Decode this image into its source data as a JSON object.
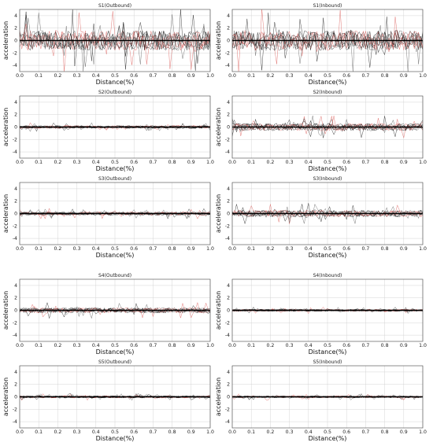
{
  "chart_data": [
    {
      "type": "line",
      "title": "S1(Outbound)",
      "xlabel": "Distance(%)",
      "ylabel": "acceleration",
      "xlim": [
        0,
        1.0
      ],
      "ylim": [
        -5,
        5
      ],
      "xticks": [
        "0.0",
        "0.1",
        "0.2",
        "0.3",
        "0.4",
        "0.5",
        "0.6",
        "0.7",
        "0.8",
        "0.9",
        "1.0"
      ],
      "yticks": [
        "4",
        "2",
        "0",
        "-2",
        "-4"
      ],
      "grid": true,
      "amplitude": 3.5,
      "mean_line_color": "#000000",
      "trace_colors": [
        "#000000",
        "#d9534f",
        "#444444"
      ]
    },
    {
      "type": "line",
      "title": "S1(Inbound)",
      "xlabel": "Distance(%)",
      "ylabel": "acceleration",
      "xlim": [
        0,
        1.0
      ],
      "ylim": [
        -5,
        5
      ],
      "xticks": [
        "0.0",
        "0.1",
        "0.2",
        "0.3",
        "0.4",
        "0.5",
        "0.6",
        "0.7",
        "0.8",
        "0.9",
        "1.0"
      ],
      "yticks": [
        "4",
        "2",
        "0",
        "-2",
        "-4"
      ],
      "grid": true,
      "amplitude": 3.6
    },
    {
      "type": "line",
      "title": "S2(Outbound)",
      "xlabel": "Distance(%)",
      "ylabel": "acceleration",
      "xlim": [
        0,
        1.0
      ],
      "ylim": [
        -5,
        5
      ],
      "xticks": [
        "0.0",
        "0.1",
        "0.2",
        "0.3",
        "0.4",
        "0.5",
        "0.6",
        "0.7",
        "0.8",
        "0.9",
        "1.0"
      ],
      "yticks": [
        "4",
        "2",
        "0",
        "-2",
        "-4"
      ],
      "grid": true,
      "amplitude": 0.5
    },
    {
      "type": "line",
      "title": "S2(Inbound)",
      "xlabel": "Distance(%)",
      "ylabel": "acceleration",
      "xlim": [
        0,
        1.0
      ],
      "ylim": [
        -5,
        5
      ],
      "xticks": [
        "0.0",
        "0.1",
        "0.2",
        "0.3",
        "0.4",
        "0.5",
        "0.6",
        "0.7",
        "0.8",
        "0.9",
        "1.0"
      ],
      "yticks": [
        "4",
        "2",
        "0",
        "-2",
        "-4"
      ],
      "grid": true,
      "amplitude": 1.3
    },
    {
      "type": "line",
      "title": "S3(Outbound)",
      "xlabel": "Distance(%)",
      "ylabel": "acceleration",
      "xlim": [
        0,
        1.0
      ],
      "ylim": [
        -5,
        5
      ],
      "xticks": [
        "0.0",
        "0.1",
        "0.2",
        "0.3",
        "0.4",
        "0.5",
        "0.6",
        "0.7",
        "0.8",
        "0.9",
        "1.0"
      ],
      "yticks": [
        "4",
        "2",
        "0",
        "-2",
        "-4"
      ],
      "grid": true,
      "amplitude": 0.6
    },
    {
      "type": "line",
      "title": "S3(Inbound)",
      "xlabel": "Distance(%)",
      "ylabel": "acceleration",
      "xlim": [
        0,
        1.0
      ],
      "ylim": [
        -5,
        5
      ],
      "xticks": [
        "0.0",
        "0.1",
        "0.2",
        "0.3",
        "0.4",
        "0.5",
        "0.6",
        "0.7",
        "0.8",
        "0.9",
        "1.0"
      ],
      "yticks": [
        "4",
        "2",
        "0",
        "-2",
        "-4"
      ],
      "grid": true,
      "amplitude": 1.2
    },
    {
      "type": "line",
      "title": "S4(Outbound)",
      "xlabel": "Distance(%)",
      "ylabel": "acceleration",
      "xlim": [
        0,
        1.0
      ],
      "ylim": [
        -5,
        5
      ],
      "xticks": [
        "0.0",
        "0.1",
        "0.2",
        "0.3",
        "0.4",
        "0.5",
        "0.6",
        "0.7",
        "0.8",
        "0.9",
        "1.0"
      ],
      "yticks": [
        "4",
        "2",
        "0",
        "-2",
        "-4"
      ],
      "grid": true,
      "amplitude": 0.9
    },
    {
      "type": "line",
      "title": "S4(Inbound)",
      "xlabel": "Distance(%)",
      "ylabel": "acceleration",
      "xlim": [
        0,
        1.0
      ],
      "ylim": [
        -5,
        5
      ],
      "xticks": [
        "0.0",
        "0.1",
        "0.2",
        "0.3",
        "0.4",
        "0.5",
        "0.6",
        "0.7",
        "0.8",
        "0.9",
        "1.0"
      ],
      "yticks": [
        "4",
        "2",
        "0",
        "-2",
        "-4"
      ],
      "grid": true,
      "amplitude": 0.4
    },
    {
      "type": "line",
      "title": "S5(Outbound)",
      "xlabel": "Distance(%)",
      "ylabel": "acceleration",
      "xlim": [
        0,
        1.0
      ],
      "ylim": [
        -5,
        5
      ],
      "xticks": [
        "0.0",
        "0.1",
        "0.2",
        "0.3",
        "0.4",
        "0.5",
        "0.6",
        "0.7",
        "0.8",
        "0.9",
        "1.0"
      ],
      "yticks": [
        "4",
        "2",
        "0",
        "-2",
        "-4"
      ],
      "grid": true,
      "amplitude": 0.4
    },
    {
      "type": "line",
      "title": "S5(Inbound)",
      "xlabel": "Distance(%)",
      "ylabel": "acceleration",
      "xlim": [
        0,
        1.0
      ],
      "ylim": [
        -5,
        5
      ],
      "xticks": [
        "0.0",
        "0.1",
        "0.2",
        "0.3",
        "0.4",
        "0.5",
        "0.6",
        "0.7",
        "0.8",
        "0.9",
        "1.0"
      ],
      "yticks": [
        "4",
        "2",
        "0",
        "-2",
        "-4"
      ],
      "grid": true,
      "amplitude": 0.35
    }
  ]
}
